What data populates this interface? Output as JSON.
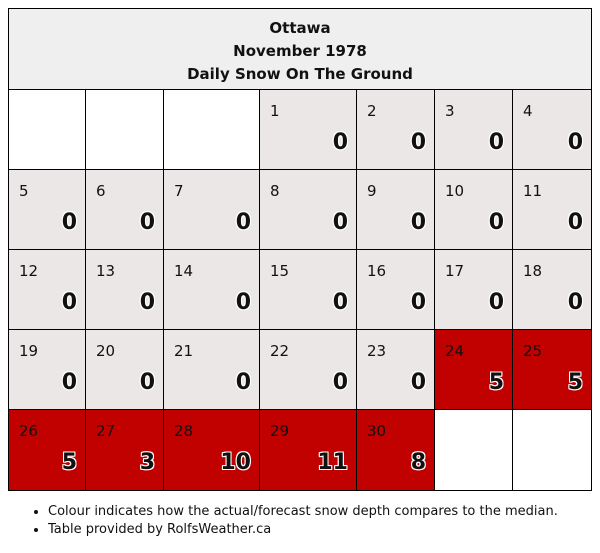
{
  "header": {
    "city": "Ottawa",
    "month": "November 1978",
    "subtitle": "Daily Snow On The Ground"
  },
  "colors": {
    "normal": "#ece7e7",
    "above_median": "#c10000",
    "empty": "#ffffff"
  },
  "weeks": [
    [
      {
        "day": "",
        "value": "",
        "status": "empty"
      },
      {
        "day": "",
        "value": "",
        "status": "empty"
      },
      {
        "day": "",
        "value": "",
        "status": "empty"
      },
      {
        "day": "1",
        "value": "0",
        "status": "norm"
      },
      {
        "day": "2",
        "value": "0",
        "status": "norm"
      },
      {
        "day": "3",
        "value": "0",
        "status": "norm"
      },
      {
        "day": "4",
        "value": "0",
        "status": "norm"
      }
    ],
    [
      {
        "day": "5",
        "value": "0",
        "status": "norm"
      },
      {
        "day": "6",
        "value": "0",
        "status": "norm"
      },
      {
        "day": "7",
        "value": "0",
        "status": "norm"
      },
      {
        "day": "8",
        "value": "0",
        "status": "norm"
      },
      {
        "day": "9",
        "value": "0",
        "status": "norm"
      },
      {
        "day": "10",
        "value": "0",
        "status": "norm"
      },
      {
        "day": "11",
        "value": "0",
        "status": "norm"
      }
    ],
    [
      {
        "day": "12",
        "value": "0",
        "status": "norm"
      },
      {
        "day": "13",
        "value": "0",
        "status": "norm"
      },
      {
        "day": "14",
        "value": "0",
        "status": "norm"
      },
      {
        "day": "15",
        "value": "0",
        "status": "norm"
      },
      {
        "day": "16",
        "value": "0",
        "status": "norm"
      },
      {
        "day": "17",
        "value": "0",
        "status": "norm"
      },
      {
        "day": "18",
        "value": "0",
        "status": "norm"
      }
    ],
    [
      {
        "day": "19",
        "value": "0",
        "status": "norm"
      },
      {
        "day": "20",
        "value": "0",
        "status": "norm"
      },
      {
        "day": "21",
        "value": "0",
        "status": "norm"
      },
      {
        "day": "22",
        "value": "0",
        "status": "norm"
      },
      {
        "day": "23",
        "value": "0",
        "status": "norm"
      },
      {
        "day": "24",
        "value": "5",
        "status": "above"
      },
      {
        "day": "25",
        "value": "5",
        "status": "above"
      }
    ],
    [
      {
        "day": "26",
        "value": "5",
        "status": "above"
      },
      {
        "day": "27",
        "value": "3",
        "status": "above"
      },
      {
        "day": "28",
        "value": "10",
        "status": "above"
      },
      {
        "day": "29",
        "value": "11",
        "status": "above"
      },
      {
        "day": "30",
        "value": "8",
        "status": "above"
      },
      {
        "day": "",
        "value": "",
        "status": "empty"
      },
      {
        "day": "",
        "value": "",
        "status": "empty"
      }
    ]
  ],
  "notes": [
    "Colour indicates how the actual/forecast snow depth compares to the median.",
    "Table provided by RolfsWeather.ca"
  ]
}
